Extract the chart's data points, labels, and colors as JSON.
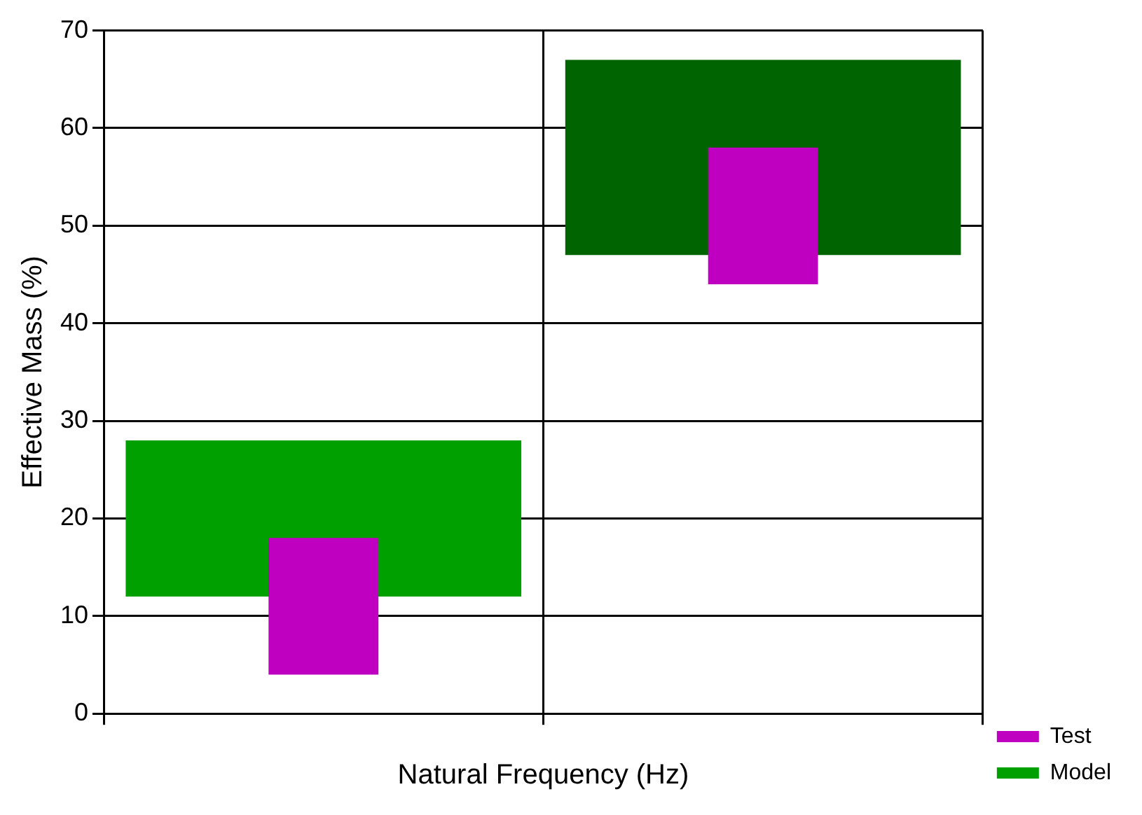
{
  "chart_data": {
    "type": "bar",
    "xlabel": "Natural Frequency (Hz)",
    "ylabel": "Effective Mass (%)",
    "categories": [
      null,
      null
    ],
    "series": [
      {
        "name": "Test",
        "color": "#c000c0",
        "colors": [
          "#c000c0",
          "#c000c0"
        ],
        "base": [
          4,
          44
        ],
        "values": [
          14,
          14
        ]
      },
      {
        "name": "Model",
        "color": "#00a000",
        "colors": [
          "#00a000",
          "#006400"
        ],
        "base": [
          12,
          47
        ],
        "values": [
          16,
          20
        ]
      }
    ],
    "ylim": [
      0,
      70
    ],
    "yticks": [
      0,
      10,
      20,
      30,
      40,
      50,
      60,
      70
    ],
    "grid": true,
    "legend": "bottom right"
  }
}
